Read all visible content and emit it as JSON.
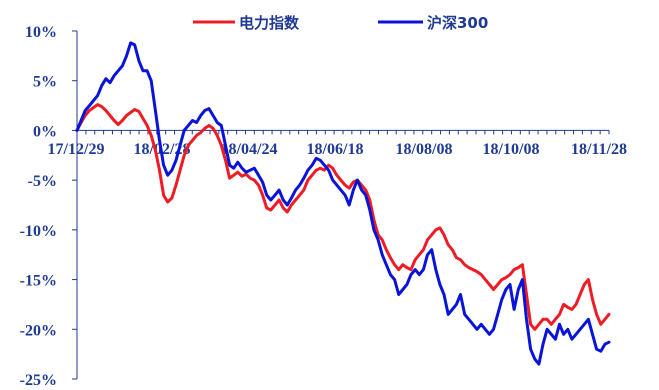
{
  "chart_data": {
    "type": "line",
    "title": "",
    "xlabel": "",
    "ylabel": "",
    "x_tick_labels": [
      "17/12/29",
      "18/02/28",
      "18/04/24",
      "18/06/18",
      "18/08/08",
      "18/10/08",
      "18/11/28"
    ],
    "y_tick_labels": [
      "10%",
      "5%",
      "0%",
      "-5%",
      "-10%",
      "-15%",
      "-20%",
      "-25%"
    ],
    "ylim": [
      -25,
      10
    ],
    "legend_position": "top",
    "grid": false,
    "series": [
      {
        "name": "电力指数",
        "color": "#ee1c24",
        "points": [
          [
            0,
            0
          ],
          [
            1,
            0.8
          ],
          [
            2,
            1.5
          ],
          [
            3,
            2.0
          ],
          [
            4,
            2.3
          ],
          [
            5,
            2.6
          ],
          [
            6,
            2.4
          ],
          [
            7,
            2.0
          ],
          [
            8,
            1.5
          ],
          [
            9,
            1.0
          ],
          [
            10,
            0.6
          ],
          [
            11,
            1.0
          ],
          [
            12,
            1.5
          ],
          [
            13,
            1.8
          ],
          [
            14,
            2.1
          ],
          [
            15,
            1.9
          ],
          [
            16,
            1.2
          ],
          [
            17,
            0.5
          ],
          [
            18,
            -0.5
          ],
          [
            19,
            -2.0
          ],
          [
            20,
            -4.0
          ],
          [
            21,
            -6.5
          ],
          [
            22,
            -7.2
          ],
          [
            23,
            -6.8
          ],
          [
            24,
            -5.5
          ],
          [
            25,
            -4.0
          ],
          [
            26,
            -2.5
          ],
          [
            27,
            -1.5
          ],
          [
            28,
            -1.0
          ],
          [
            29,
            -0.5
          ],
          [
            30,
            -0.2
          ],
          [
            31,
            0.2
          ],
          [
            32,
            0.5
          ],
          [
            33,
            0.2
          ],
          [
            34,
            -0.5
          ],
          [
            35,
            -1.5
          ],
          [
            36,
            -3.0
          ],
          [
            37,
            -4.8
          ],
          [
            38,
            -4.5
          ],
          [
            39,
            -4.2
          ],
          [
            40,
            -4.6
          ],
          [
            41,
            -4.4
          ],
          [
            42,
            -4.8
          ],
          [
            43,
            -5.0
          ],
          [
            44,
            -5.5
          ],
          [
            45,
            -6.5
          ],
          [
            46,
            -7.8
          ],
          [
            47,
            -8.0
          ],
          [
            48,
            -7.5
          ],
          [
            49,
            -7.0
          ],
          [
            50,
            -7.8
          ],
          [
            51,
            -8.2
          ],
          [
            52,
            -7.5
          ],
          [
            53,
            -7.0
          ],
          [
            54,
            -6.5
          ],
          [
            55,
            -6.0
          ],
          [
            56,
            -5.0
          ],
          [
            57,
            -4.5
          ],
          [
            58,
            -4.0
          ],
          [
            59,
            -3.8
          ],
          [
            60,
            -4.0
          ],
          [
            61,
            -3.5
          ],
          [
            62,
            -3.8
          ],
          [
            63,
            -4.5
          ],
          [
            64,
            -5.0
          ],
          [
            65,
            -5.5
          ],
          [
            66,
            -5.8
          ],
          [
            67,
            -5.2
          ],
          [
            68,
            -5.0
          ],
          [
            69,
            -5.5
          ],
          [
            70,
            -6.0
          ],
          [
            71,
            -7.0
          ],
          [
            72,
            -9.0
          ],
          [
            73,
            -10.5
          ],
          [
            74,
            -11.0
          ],
          [
            75,
            -12.0
          ],
          [
            76,
            -12.8
          ],
          [
            77,
            -13.5
          ],
          [
            78,
            -14.0
          ],
          [
            79,
            -13.5
          ],
          [
            80,
            -13.8
          ],
          [
            81,
            -14.0
          ],
          [
            82,
            -13.0
          ],
          [
            83,
            -12.5
          ],
          [
            84,
            -12.0
          ],
          [
            85,
            -11.0
          ],
          [
            86,
            -10.5
          ],
          [
            87,
            -10.0
          ],
          [
            88,
            -9.8
          ],
          [
            89,
            -10.5
          ],
          [
            90,
            -11.5
          ],
          [
            91,
            -12.0
          ],
          [
            92,
            -12.8
          ],
          [
            93,
            -13.0
          ],
          [
            94,
            -13.5
          ],
          [
            95,
            -13.8
          ],
          [
            96,
            -14.0
          ],
          [
            97,
            -14.2
          ],
          [
            98,
            -14.5
          ],
          [
            99,
            -15.0
          ],
          [
            100,
            -15.5
          ],
          [
            101,
            -16.0
          ],
          [
            102,
            -15.5
          ],
          [
            103,
            -15.0
          ],
          [
            104,
            -14.8
          ],
          [
            105,
            -14.5
          ],
          [
            106,
            -14.0
          ],
          [
            107,
            -13.8
          ],
          [
            108,
            -13.5
          ],
          [
            109,
            -16.5
          ],
          [
            110,
            -19.5
          ],
          [
            111,
            -20.0
          ],
          [
            112,
            -19.5
          ],
          [
            113,
            -19.0
          ],
          [
            114,
            -19.0
          ],
          [
            115,
            -19.5
          ],
          [
            116,
            -19.0
          ],
          [
            117,
            -18.5
          ],
          [
            118,
            -17.5
          ],
          [
            119,
            -17.8
          ],
          [
            120,
            -18.0
          ],
          [
            121,
            -17.5
          ],
          [
            122,
            -16.5
          ],
          [
            123,
            -15.5
          ],
          [
            124,
            -15.0
          ],
          [
            125,
            -17.0
          ],
          [
            126,
            -18.5
          ],
          [
            127,
            -19.5
          ],
          [
            128,
            -19.0
          ],
          [
            129,
            -18.5
          ]
        ]
      },
      {
        "name": "沪深300",
        "color": "#0a14d8",
        "points": [
          [
            0,
            0
          ],
          [
            1,
            1.0
          ],
          [
            2,
            2.0
          ],
          [
            3,
            2.5
          ],
          [
            4,
            3.0
          ],
          [
            5,
            3.5
          ],
          [
            6,
            4.5
          ],
          [
            7,
            5.2
          ],
          [
            8,
            4.8
          ],
          [
            9,
            5.5
          ],
          [
            10,
            6.0
          ],
          [
            11,
            6.5
          ],
          [
            12,
            7.5
          ],
          [
            13,
            8.8
          ],
          [
            14,
            8.6
          ],
          [
            15,
            7.0
          ],
          [
            16,
            6.0
          ],
          [
            17,
            6.0
          ],
          [
            18,
            5.0
          ],
          [
            19,
            2.0
          ],
          [
            20,
            -1.0
          ],
          [
            21,
            -3.5
          ],
          [
            22,
            -4.5
          ],
          [
            23,
            -4.0
          ],
          [
            24,
            -3.0
          ],
          [
            25,
            -1.5
          ],
          [
            26,
            0.0
          ],
          [
            27,
            0.5
          ],
          [
            28,
            1.0
          ],
          [
            29,
            0.8
          ],
          [
            30,
            1.5
          ],
          [
            31,
            2.0
          ],
          [
            32,
            2.2
          ],
          [
            33,
            1.5
          ],
          [
            34,
            0.8
          ],
          [
            35,
            0.5
          ],
          [
            36,
            -1.5
          ],
          [
            37,
            -3.5
          ],
          [
            38,
            -3.8
          ],
          [
            39,
            -3.2
          ],
          [
            40,
            -3.8
          ],
          [
            41,
            -4.2
          ],
          [
            42,
            -4.0
          ],
          [
            43,
            -3.8
          ],
          [
            44,
            -4.5
          ],
          [
            45,
            -5.2
          ],
          [
            46,
            -6.5
          ],
          [
            47,
            -7.0
          ],
          [
            48,
            -6.5
          ],
          [
            49,
            -6.0
          ],
          [
            50,
            -7.0
          ],
          [
            51,
            -7.5
          ],
          [
            52,
            -6.8
          ],
          [
            53,
            -6.0
          ],
          [
            54,
            -5.5
          ],
          [
            55,
            -4.8
          ],
          [
            56,
            -4.0
          ],
          [
            57,
            -3.5
          ],
          [
            58,
            -2.8
          ],
          [
            59,
            -3.0
          ],
          [
            60,
            -3.5
          ],
          [
            61,
            -4.0
          ],
          [
            62,
            -5.0
          ],
          [
            63,
            -5.5
          ],
          [
            64,
            -6.0
          ],
          [
            65,
            -6.5
          ],
          [
            66,
            -7.5
          ],
          [
            67,
            -6.0
          ],
          [
            68,
            -5.0
          ],
          [
            69,
            -6.0
          ],
          [
            70,
            -6.5
          ],
          [
            71,
            -8.0
          ],
          [
            72,
            -10.0
          ],
          [
            73,
            -11.0
          ],
          [
            74,
            -12.5
          ],
          [
            75,
            -13.5
          ],
          [
            76,
            -14.5
          ],
          [
            77,
            -15.0
          ],
          [
            78,
            -16.5
          ],
          [
            79,
            -16.0
          ],
          [
            80,
            -15.5
          ],
          [
            81,
            -14.5
          ],
          [
            82,
            -14.0
          ],
          [
            83,
            -14.5
          ],
          [
            84,
            -14.0
          ],
          [
            85,
            -12.5
          ],
          [
            86,
            -12.0
          ],
          [
            87,
            -14.0
          ],
          [
            88,
            -15.5
          ],
          [
            89,
            -16.5
          ],
          [
            90,
            -18.5
          ],
          [
            91,
            -18.0
          ],
          [
            92,
            -17.5
          ],
          [
            93,
            -16.5
          ],
          [
            94,
            -18.5
          ],
          [
            95,
            -19.0
          ],
          [
            96,
            -19.5
          ],
          [
            97,
            -20.0
          ],
          [
            98,
            -19.5
          ],
          [
            99,
            -20.0
          ],
          [
            100,
            -20.5
          ],
          [
            101,
            -20.0
          ],
          [
            102,
            -18.5
          ],
          [
            103,
            -17.0
          ],
          [
            104,
            -16.0
          ],
          [
            105,
            -15.5
          ],
          [
            106,
            -18.0
          ],
          [
            107,
            -16.0
          ],
          [
            108,
            -15.0
          ],
          [
            109,
            -19.0
          ],
          [
            110,
            -22.0
          ],
          [
            111,
            -23.0
          ],
          [
            112,
            -23.5
          ],
          [
            113,
            -21.5
          ],
          [
            114,
            -20.0
          ],
          [
            115,
            -20.5
          ],
          [
            116,
            -21.0
          ],
          [
            117,
            -19.5
          ],
          [
            118,
            -20.5
          ],
          [
            119,
            -20.0
          ],
          [
            120,
            -21.0
          ],
          [
            121,
            -20.5
          ],
          [
            122,
            -20.0
          ],
          [
            123,
            -19.5
          ],
          [
            124,
            -19.0
          ],
          [
            125,
            -20.5
          ],
          [
            126,
            -22.0
          ],
          [
            127,
            -22.2
          ],
          [
            128,
            -21.5
          ],
          [
            129,
            -21.3
          ]
        ]
      }
    ]
  }
}
